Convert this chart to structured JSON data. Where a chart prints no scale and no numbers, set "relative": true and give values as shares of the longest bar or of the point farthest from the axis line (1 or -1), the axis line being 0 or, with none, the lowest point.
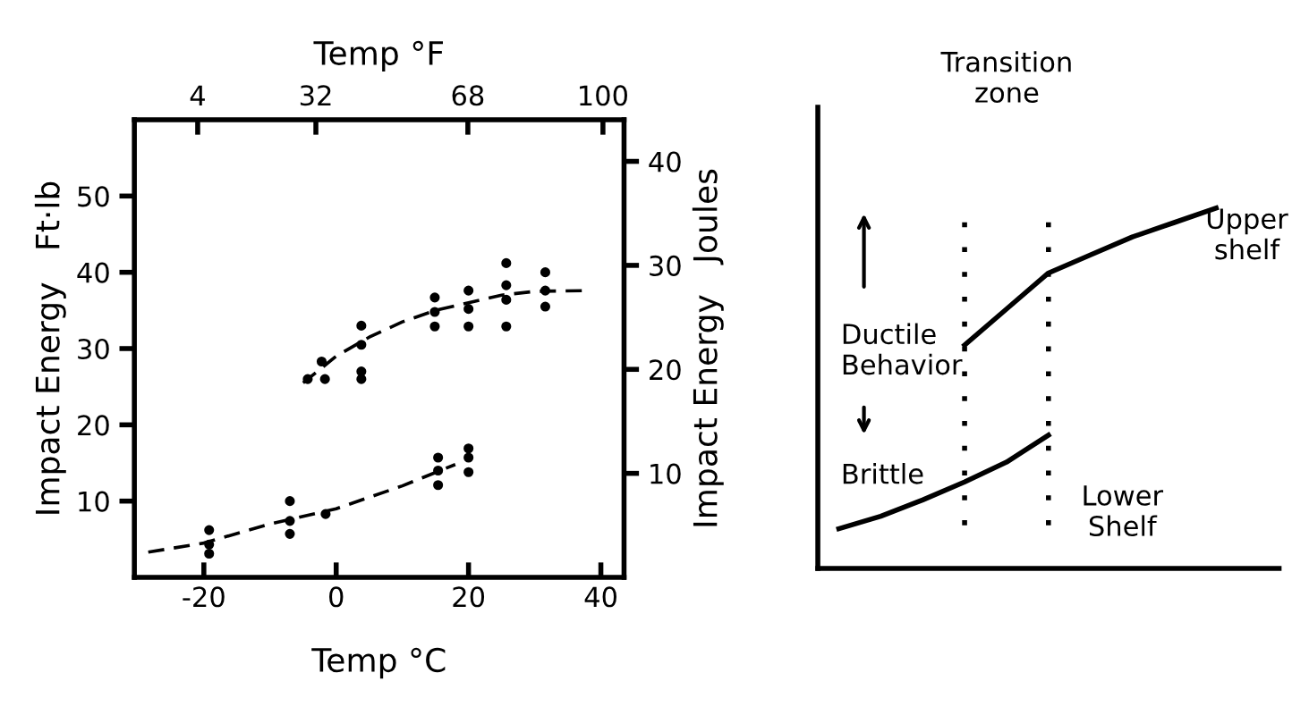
{
  "chart_data": [
    {
      "type": "scatter",
      "xlabel": "Temp °C",
      "x2label": "Temp °F",
      "ylabel": "Impact Energy   Ft·lb",
      "y2label": "Impact Energy   Joules",
      "xlim": [
        -30.5,
        43.5
      ],
      "xticks": [
        -20,
        0,
        20,
        40
      ],
      "ylim": [
        0,
        60
      ],
      "yticks": [
        10,
        20,
        30,
        40,
        50
      ],
      "x2lim": [
        -11,
        105
      ],
      "x2ticks": [
        4,
        32,
        68,
        100
      ],
      "y2lim": [
        0,
        44
      ],
      "y2ticks": [
        10,
        20,
        30,
        40
      ],
      "grid": false,
      "legend": false,
      "marker": "circle",
      "series": [
        {
          "type": "scatter",
          "color": "#000000",
          "x": [
            -4.3,
            -2.2,
            -1.7,
            3.8,
            3.8,
            3.8,
            3.8,
            14.9,
            14.9,
            14.9,
            20,
            20,
            20,
            25.7,
            25.7,
            25.7,
            25.7,
            31.6,
            31.6,
            31.6
          ],
          "values": [
            26,
            28.3,
            26,
            33,
            30.5,
            27,
            26,
            36.7,
            34.8,
            32.9,
            37.6,
            35.2,
            32.9,
            41.2,
            38.3,
            36.4,
            32.9,
            40,
            37.6,
            35.5
          ]
        },
        {
          "type": "scatter",
          "color": "#000000",
          "x": [
            -19.2,
            -19.2,
            -19.2,
            -7,
            -7,
            -7,
            -1.6,
            15.4,
            15.4,
            15.4,
            20,
            20,
            20
          ],
          "values": [
            6.2,
            4.3,
            3.1,
            10,
            7.4,
            5.7,
            8.3,
            15.7,
            14,
            12.1,
            16.9,
            15.7,
            13.8
          ]
        },
        {
          "type": "line",
          "color": "#000000",
          "marker": "none",
          "line_style": "dashed",
          "x": [
            -5,
            0,
            5,
            10,
            15,
            20,
            25,
            30,
            37.8
          ],
          "values": [
            25.5,
            29,
            31.5,
            33.5,
            35,
            36,
            37,
            37.5,
            37.6
          ]
        },
        {
          "type": "line",
          "color": "#000000",
          "marker": "none",
          "line_style": "dashed",
          "x": [
            -28.4,
            -20,
            -10,
            0,
            10,
            18
          ],
          "values": [
            3.3,
            4.5,
            7,
            9,
            12,
            14.8
          ]
        }
      ]
    },
    {
      "type": "line",
      "relative": true,
      "categories": [
        null,
        null,
        null,
        null,
        null,
        null,
        null,
        null,
        null,
        null,
        null
      ],
      "tick_labels": false,
      "grid": false,
      "legend": false,
      "marker": "none",
      "series": [
        {
          "color": "#000000",
          "values": [
            0.11,
            0.145,
            0.19,
            0.24,
            0.295,
            0.37,
            null,
            null,
            null,
            null,
            null
          ]
        },
        {
          "color": "#000000",
          "values": [
            null,
            null,
            null,
            0.62,
            0.72,
            0.82,
            0.87,
            0.92,
            0.96,
            1.0,
            null
          ]
        }
      ],
      "annotations": [
        "Upper\nshelf",
        "Lower\nShelf",
        "Ductile\nBehavior",
        "Brittle",
        "Transition\nzone"
      ]
    }
  ]
}
